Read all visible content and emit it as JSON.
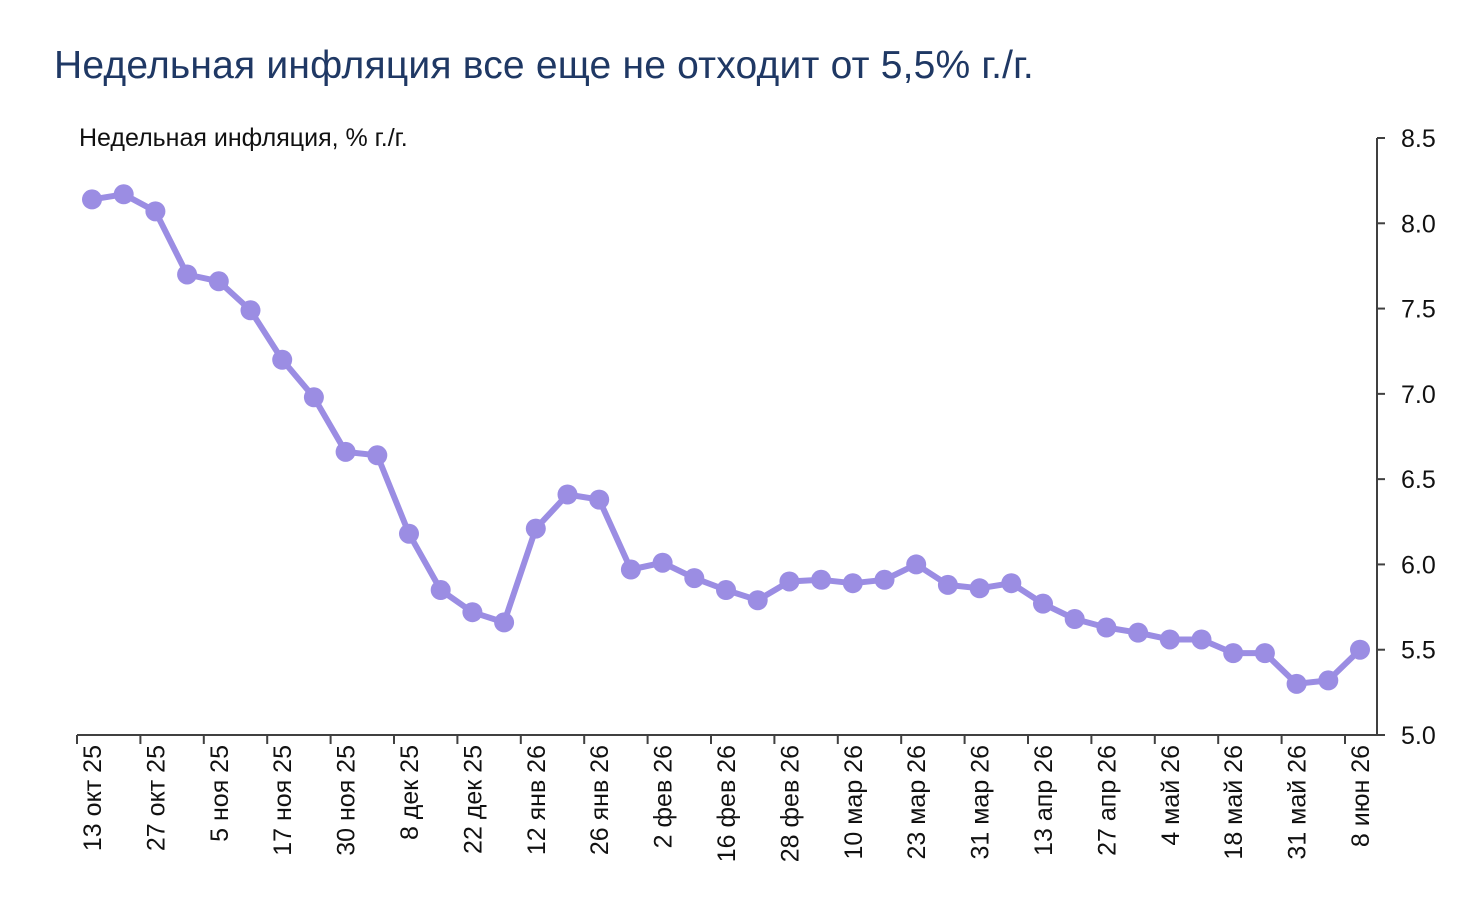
{
  "title": "Недельная инфляция все еще не отходит от 5,5% г./г.",
  "chart_data": {
    "type": "line",
    "ylabel": "Недельная инфляция, % г./г.",
    "y_axis_side": "right",
    "ylim": [
      5.0,
      8.5
    ],
    "y_ticks": [
      "5.0",
      "5.5",
      "6.0",
      "6.5",
      "7.0",
      "7.5",
      "8.0",
      "8.5"
    ],
    "grid": false,
    "legend": "none",
    "line_color": "#9b8de3",
    "x_tick_labels": [
      "13 окт 25",
      "27 окт 25",
      "5 ноя 25",
      "17 ноя 25",
      "30 ноя 25",
      "8 дек 25",
      "22 дек 25",
      "12 янв 26",
      "26 янв 26",
      "2 фев 26",
      "16 фев 26",
      "28 фев 26",
      "10 мар 26",
      "23 мар 26",
      "31 мар 26",
      "13 апр 26",
      "27 апр 26",
      "4 май 26",
      "18 май 26",
      "31 май 26",
      "8 июн 26"
    ],
    "series": [
      {
        "values": [
          8.14,
          8.17,
          8.07,
          7.7,
          7.66,
          7.49,
          7.2,
          6.98,
          6.66,
          6.64,
          6.18,
          5.85,
          5.72,
          5.66,
          6.21,
          6.41,
          6.38,
          5.97,
          6.01,
          5.92,
          5.85,
          5.79,
          5.9,
          5.91,
          5.89,
          5.91,
          6.0,
          5.88,
          5.86,
          5.89,
          5.77,
          5.68,
          5.63,
          5.6,
          5.56,
          5.56,
          5.48,
          5.48,
          5.3,
          5.32,
          5.5
        ]
      }
    ]
  }
}
